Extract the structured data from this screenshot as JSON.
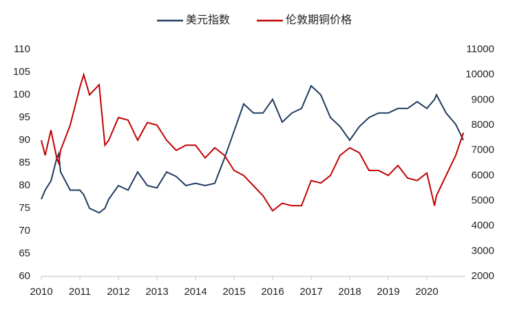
{
  "chart_data": {
    "type": "line",
    "legend": "top",
    "x": [
      2010.0,
      2010.1,
      2010.25,
      2010.4,
      2010.45,
      2010.5,
      2010.75,
      2011.0,
      2011.1,
      2011.25,
      2011.5,
      2011.65,
      2011.75,
      2012.0,
      2012.25,
      2012.5,
      2012.75,
      2013.0,
      2013.25,
      2013.5,
      2013.75,
      2014.0,
      2014.25,
      2014.5,
      2014.75,
      2015.0,
      2015.25,
      2015.5,
      2015.75,
      2016.0,
      2016.25,
      2016.5,
      2016.75,
      2017.0,
      2017.25,
      2017.5,
      2017.75,
      2018.0,
      2018.25,
      2018.5,
      2018.75,
      2019.0,
      2019.25,
      2019.5,
      2019.75,
      2020.0,
      2020.2,
      2020.25,
      2020.5,
      2020.75,
      2020.95
    ],
    "xlim": [
      2010,
      2021
    ],
    "xticks": [
      2010,
      2011,
      2012,
      2013,
      2014,
      2015,
      2016,
      2017,
      2018,
      2019,
      2020
    ],
    "ylim": [
      60,
      110
    ],
    "yticks": [
      60,
      65,
      70,
      75,
      80,
      85,
      90,
      95,
      100,
      105,
      110
    ],
    "y2lim": [
      2000,
      11000
    ],
    "y2ticks": [
      2000,
      3000,
      4000,
      5000,
      6000,
      7000,
      8000,
      9000,
      10000,
      11000
    ],
    "series": [
      {
        "name": "美元指数",
        "color": "#1f3a5f",
        "values": [
          77,
          79,
          81,
          86,
          87,
          83,
          79,
          79,
          78,
          75,
          74,
          75,
          77,
          80,
          79,
          83,
          80,
          79.5,
          83,
          82,
          80,
          80.5,
          80,
          80.5,
          86,
          92,
          98,
          96,
          96,
          99,
          94,
          96,
          97,
          102,
          100,
          95,
          93,
          90,
          93,
          95,
          96,
          96,
          97,
          97,
          98.5,
          97,
          99,
          100,
          96,
          93.5,
          90
        ]
      },
      {
        "name": "伦敦期铜价格",
        "color": "#c00000",
        "axis": "y2",
        "values": [
          7400,
          6800,
          7800,
          6700,
          6500,
          7000,
          8000,
          9500,
          10000,
          9200,
          9600,
          7200,
          7400,
          8300,
          8200,
          7400,
          8100,
          8000,
          7400,
          7000,
          7200,
          7200,
          6700,
          7100,
          6800,
          6200,
          6000,
          5600,
          5200,
          4600,
          4900,
          4800,
          4800,
          5800,
          5700,
          6000,
          6800,
          7100,
          6900,
          6200,
          6200,
          6000,
          6400,
          5900,
          5800,
          6100,
          4800,
          5200,
          6000,
          6800,
          7700
        ]
      }
    ]
  }
}
